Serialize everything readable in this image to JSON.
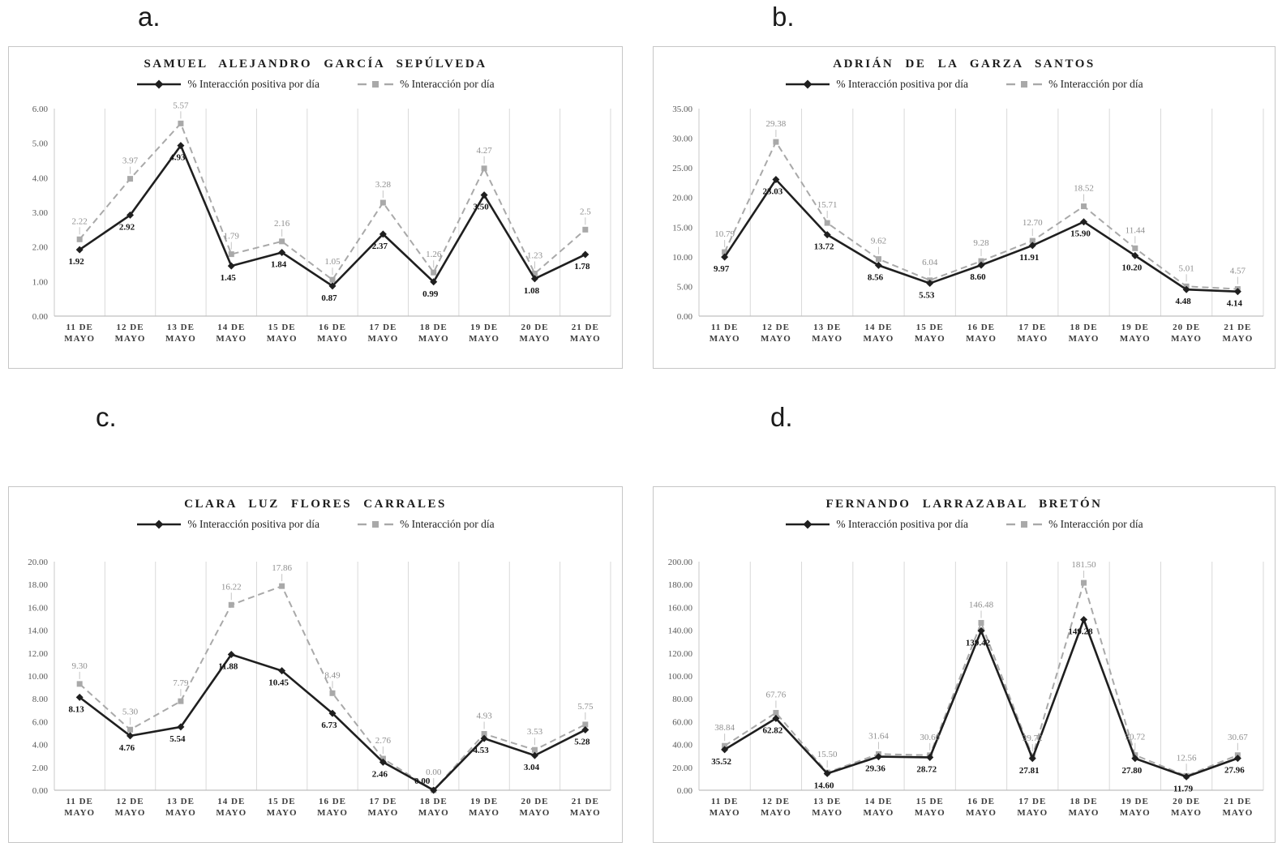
{
  "figure": {
    "legend_positive": "% Interacción positiva por día",
    "legend_total": "% Interacción por día"
  },
  "colors": {
    "positive_line": "#1f1f1f",
    "total_line": "#a9a9a9",
    "gridline": "#d9d9d9",
    "axis_line": "#bfbfbf",
    "y_tick_label": "#595959",
    "x_tick_label": "#3d3d3d",
    "positive_data_label": "#141414",
    "total_data_label": "#8f8f8f",
    "panel_border": "#c6c6c6",
    "title_text": "#1c1c1c"
  },
  "chart_data": [
    {
      "type": "line",
      "panel_label": "a.",
      "title": "SAMUEL ALEJANDRO GARCÍA SEPÚLVEDA",
      "categories": [
        "11 DE MAYO",
        "12 DE MAYO",
        "13 DE MAYO",
        "14 DE MAYO",
        "15 DE MAYO",
        "16 DE MAYO",
        "17 DE MAYO",
        "18 DE MAYO",
        "19 DE MAYO",
        "20 DE MAYO",
        "21 DE MAYO"
      ],
      "ylim": [
        0,
        6
      ],
      "ystep": 1,
      "grid": "vertical-only",
      "legend_position": "top",
      "series": [
        {
          "name": "% Interacción positiva por día",
          "line": "solid",
          "marker": "diamond",
          "values": [
            1.92,
            2.92,
            4.93,
            1.45,
            1.84,
            0.87,
            2.37,
            0.99,
            3.5,
            1.08,
            1.78
          ],
          "labels": [
            "1.92",
            "2.92",
            "4.93",
            "1.45",
            "1.84",
            "0.87",
            "2.37",
            "0.99",
            "3.50",
            "1.08",
            "1.78"
          ]
        },
        {
          "name": "% Interacción por día",
          "line": "dashed",
          "marker": "square",
          "values": [
            2.22,
            3.97,
            5.57,
            1.79,
            2.16,
            1.05,
            3.28,
            1.26,
            4.27,
            1.23,
            2.5
          ],
          "labels": [
            "2.22",
            "3.97",
            "5.57",
            "1.79",
            "2.16",
            "1.05",
            "3.28",
            "1.26",
            "4.27",
            "1.23",
            "2.5"
          ]
        }
      ]
    },
    {
      "type": "line",
      "panel_label": "b.",
      "title": "ADRIÁN DE LA GARZA SANTOS",
      "categories": [
        "11 DE MAYO",
        "12 DE MAYO",
        "13 DE MAYO",
        "14 DE MAYO",
        "15 DE MAYO",
        "16 DE MAYO",
        "17 DE MAYO",
        "18 DE MAYO",
        "19 DE MAYO",
        "20 DE MAYO",
        "21 DE MAYO"
      ],
      "ylim": [
        0,
        35
      ],
      "ystep": 5,
      "grid": "vertical-only",
      "legend_position": "top",
      "series": [
        {
          "name": "% Interacción positiva por día",
          "line": "solid",
          "marker": "diamond",
          "values": [
            9.97,
            23.03,
            13.72,
            8.56,
            5.53,
            8.6,
            11.91,
            15.9,
            10.2,
            4.48,
            4.14
          ],
          "labels": [
            "9.97",
            "23.03",
            "13.72",
            "8.56",
            "5.53",
            "8.60",
            "11.91",
            "15.90",
            "10.20",
            "4.48",
            "4.14"
          ]
        },
        {
          "name": "% Interacción por día",
          "line": "dashed",
          "marker": "square",
          "values": [
            10.79,
            29.38,
            15.71,
            9.62,
            6.04,
            9.28,
            12.7,
            18.52,
            11.44,
            5.01,
            4.57
          ],
          "labels": [
            "10.79",
            "29.38",
            "15.71",
            "9.62",
            "6.04",
            "9.28",
            "12.70",
            "18.52",
            "11.44",
            "5.01",
            "4.57"
          ]
        }
      ]
    },
    {
      "type": "line",
      "panel_label": "c.",
      "title": "CLARA LUZ FLORES CARRALES",
      "categories": [
        "11 DE MAYO",
        "12 DE MAYO",
        "13 DE MAYO",
        "14 DE MAYO",
        "15 DE MAYO",
        "16 DE MAYO",
        "17 DE MAYO",
        "18 DE MAYO",
        "19 DE MAYO",
        "20 DE MAYO",
        "21 DE MAYO"
      ],
      "ylim": [
        0,
        20
      ],
      "ystep": 2,
      "grid": "vertical-only",
      "legend_position": "top",
      "series": [
        {
          "name": "% Interacción positiva por día",
          "line": "solid",
          "marker": "diamond",
          "values": [
            8.13,
            4.76,
            5.54,
            11.88,
            10.45,
            6.73,
            2.46,
            0.0,
            4.53,
            3.04,
            5.28
          ],
          "labels": [
            "8.13",
            "4.76",
            "5.54",
            "11.88",
            "10.45",
            "6.73",
            "2.46",
            "0.00",
            "4.53",
            "3.04",
            "5.28"
          ]
        },
        {
          "name": "% Interacción por día",
          "line": "dashed",
          "marker": "square",
          "values": [
            9.3,
            5.3,
            7.79,
            16.22,
            17.86,
            8.49,
            2.76,
            0.0,
            4.93,
            3.53,
            5.75
          ],
          "labels": [
            "9.30",
            "5.30",
            "7.79",
            "16.22",
            "17.86",
            "8.49",
            "2.76",
            "0.00",
            "4.93",
            "3.53",
            "5.75"
          ]
        }
      ]
    },
    {
      "type": "line",
      "panel_label": "d.",
      "title": "FERNANDO LARRAZABAL BRETÓN",
      "categories": [
        "11 DE MAYO",
        "12 DE MAYO",
        "13 DE MAYO",
        "14 DE MAYO",
        "15 DE MAYO",
        "16 DE MAYO",
        "17 DE MAYO",
        "18 DE MAYO",
        "19 DE MAYO",
        "20 DE MAYO",
        "21 DE MAYO"
      ],
      "ylim": [
        0,
        200
      ],
      "ystep": 20,
      "grid": "vertical-only",
      "legend_position": "top",
      "series": [
        {
          "name": "% Interacción positiva por día",
          "line": "solid",
          "marker": "diamond",
          "values": [
            35.52,
            62.82,
            14.6,
            29.36,
            28.72,
            139.42,
            27.81,
            149.28,
            27.8,
            11.79,
            27.96
          ],
          "labels": [
            "35.52",
            "62.82",
            "14.60",
            "29.36",
            "28.72",
            "139.42",
            "27.81",
            "149.28",
            "27.80",
            "11.79",
            "27.96"
          ]
        },
        {
          "name": "% Interacción por día",
          "line": "dashed",
          "marker": "square",
          "values": [
            38.84,
            67.76,
            15.5,
            31.64,
            30.6,
            146.48,
            29.72,
            181.5,
            30.72,
            12.56,
            30.67
          ],
          "labels": [
            "38.84",
            "67.76",
            "15.50",
            "31.64",
            "30.60",
            "146.48",
            "29.72",
            "181.50",
            "30.72",
            "12.56",
            "30.67"
          ]
        }
      ]
    }
  ]
}
